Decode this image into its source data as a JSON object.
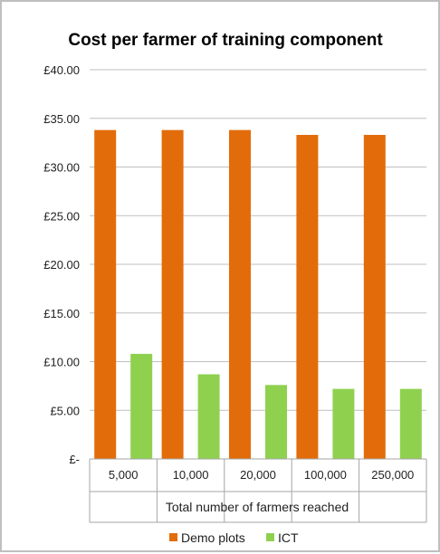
{
  "chart_data": {
    "type": "bar",
    "title": "Cost per farmer of training component",
    "xlabel": "Total number of farmers reached",
    "ylabel": "",
    "categories": [
      "5,000",
      "10,000",
      "20,000",
      "100,000",
      "250,000"
    ],
    "series": [
      {
        "name": "Demo plots",
        "color": "#e36c0a",
        "values": [
          33.8,
          33.8,
          33.8,
          33.3,
          33.3
        ]
      },
      {
        "name": "ICT",
        "color": "#8fd14f",
        "values": [
          10.8,
          8.7,
          7.6,
          7.2,
          7.2
        ]
      }
    ],
    "ylim": [
      0,
      40
    ],
    "yticks": [
      {
        "value": 40,
        "label": "£40.00"
      },
      {
        "value": 35,
        "label": "£35.00"
      },
      {
        "value": 30,
        "label": "£30.00"
      },
      {
        "value": 25,
        "label": "£25.00"
      },
      {
        "value": 20,
        "label": "£20.00"
      },
      {
        "value": 15,
        "label": "£15.00"
      },
      {
        "value": 10,
        "label": "£10.00"
      },
      {
        "value": 5,
        "label": "£5.00"
      },
      {
        "value": 0,
        "label": "£-"
      }
    ],
    "grid": true,
    "legend": "bottom"
  }
}
